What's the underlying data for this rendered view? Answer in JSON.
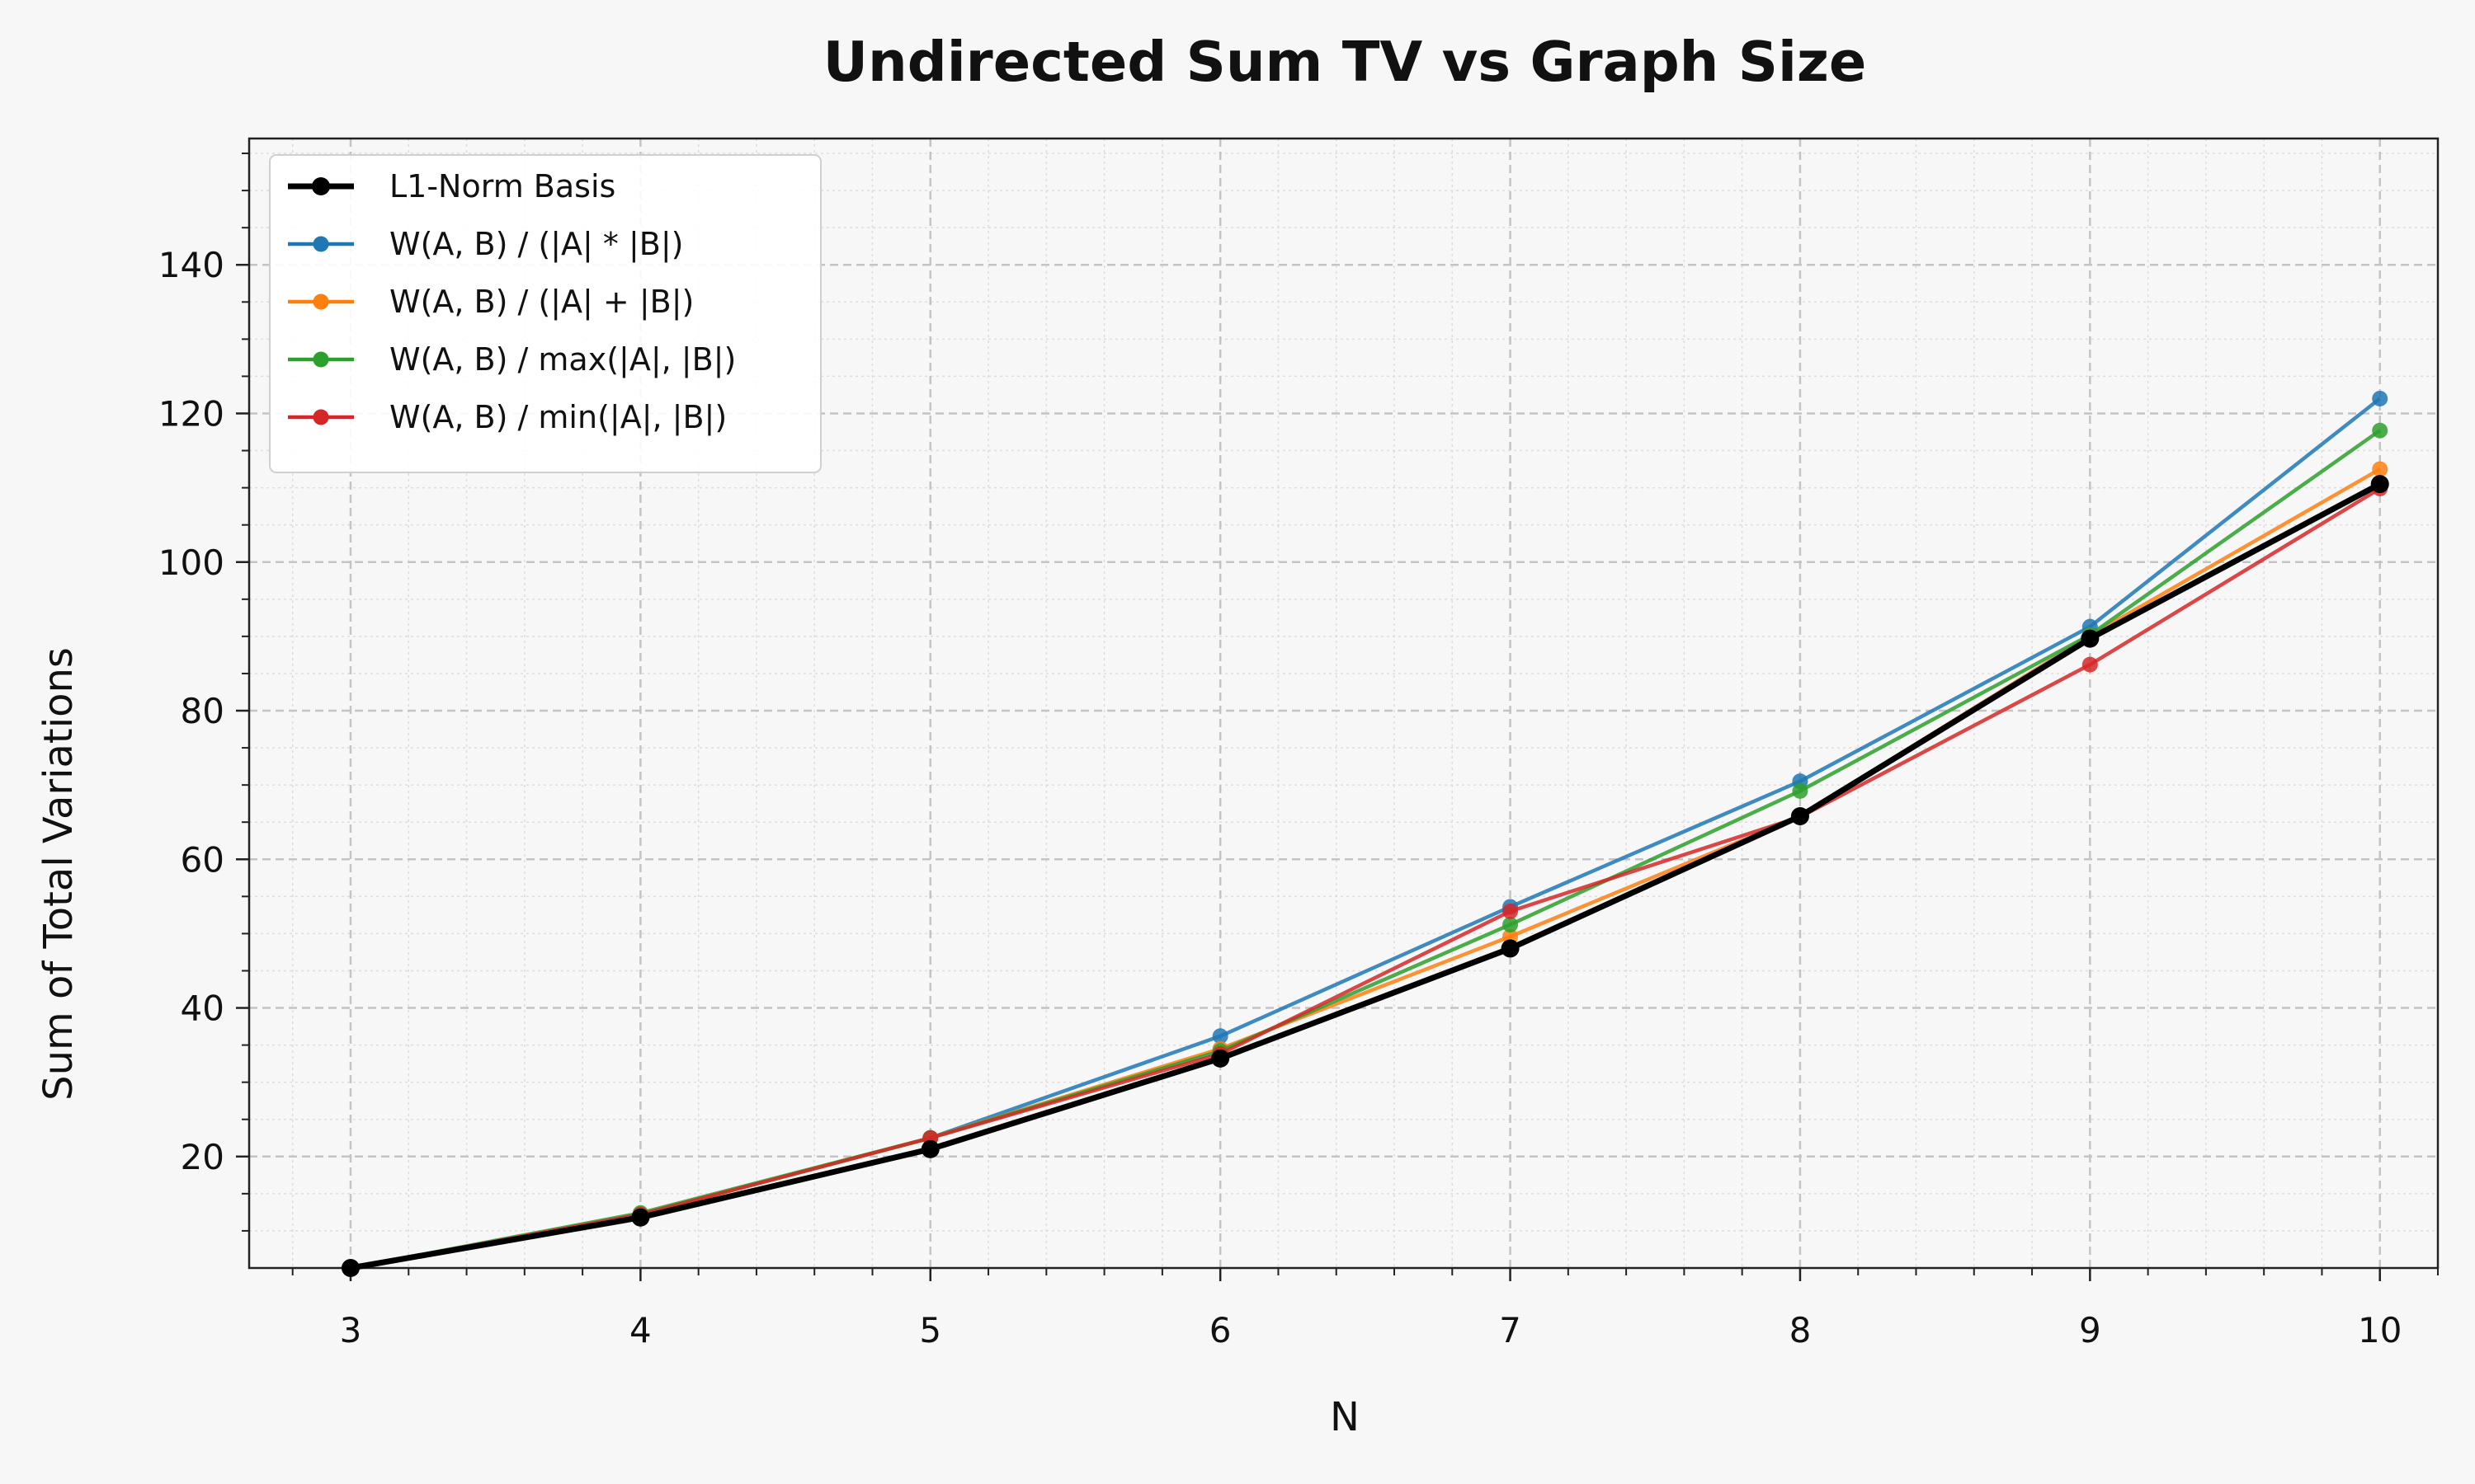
{
  "chart_data": {
    "type": "line",
    "title": "Undirected Sum TV vs Graph Size",
    "xlabel": "N",
    "ylabel": "Sum of Total Variations",
    "x": [
      3,
      4,
      5,
      6,
      7,
      8,
      9,
      10
    ],
    "xlim": [
      2.65,
      10.2
    ],
    "ylim": [
      5,
      157
    ],
    "xticks": [
      3,
      4,
      5,
      6,
      7,
      8,
      9,
      10
    ],
    "yticks": [
      20,
      40,
      60,
      80,
      100,
      120,
      140
    ],
    "grid": true,
    "legend_position": "top-left",
    "series": [
      {
        "name": "L1-Norm Basis",
        "color": "#000000",
        "emphasis": true,
        "values": [
          5,
          11.8,
          21,
          33.2,
          48,
          65.8,
          89.7,
          110.5
        ]
      },
      {
        "name": "W(A, B) / (|A| * |B|)",
        "color": "#1f77b4",
        "values": [
          5,
          12.2,
          22.5,
          36.2,
          53.6,
          70.5,
          91.3,
          122
        ]
      },
      {
        "name": "W(A, B) / (|A| + |B|)",
        "color": "#ff7f0e",
        "values": [
          5,
          12.2,
          22.5,
          34.5,
          49.6,
          65.8,
          90.1,
          112.5
        ]
      },
      {
        "name": "W(A, B) / max(|A|, |B|)",
        "color": "#2ca02c",
        "values": [
          5,
          12.4,
          22.5,
          34.2,
          51.2,
          69.2,
          90.2,
          117.7
        ]
      },
      {
        "name": "W(A, B) / min(|A|, |B|)",
        "color": "#d62728",
        "values": [
          5,
          12.2,
          22.5,
          33.8,
          53,
          65.7,
          86.2,
          109.9
        ]
      }
    ]
  }
}
